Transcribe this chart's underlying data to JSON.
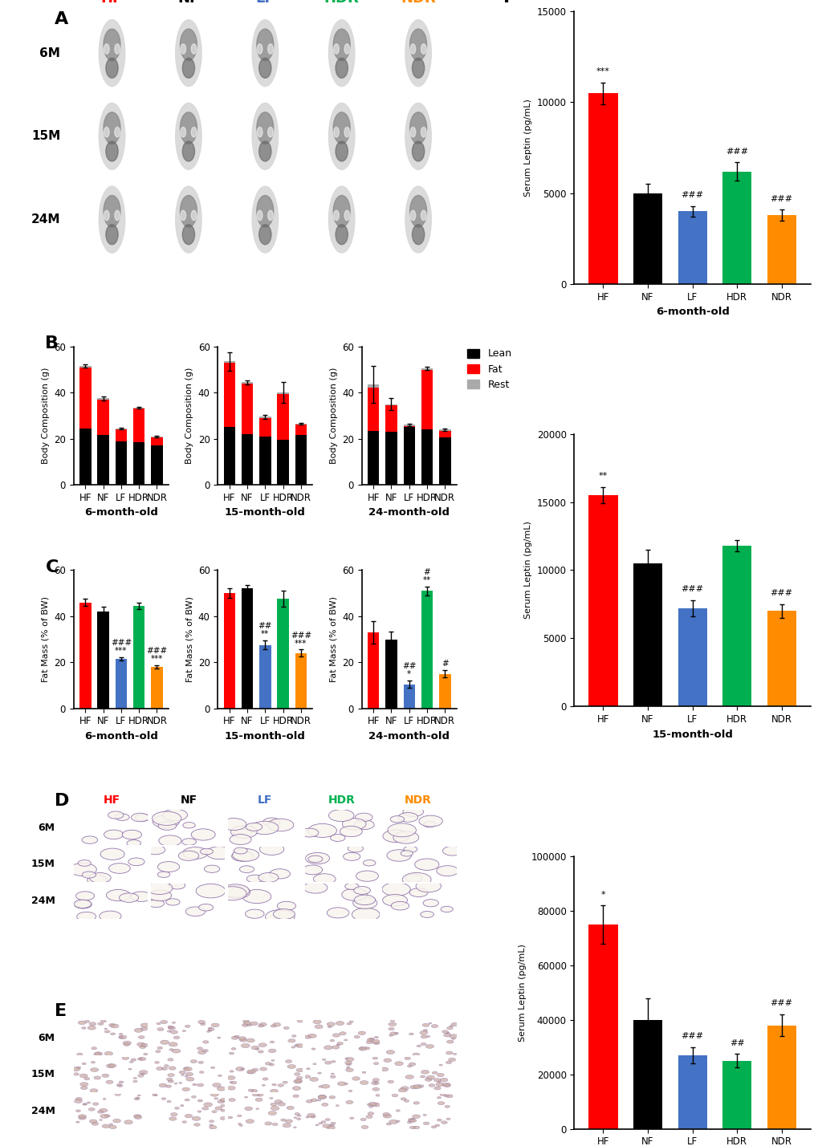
{
  "panel_labels": [
    "A",
    "B",
    "C",
    "D",
    "E",
    "F"
  ],
  "group_labels": [
    "HF",
    "NF",
    "LF",
    "HDR",
    "NDR"
  ],
  "group_colors": [
    "#FF0000",
    "#000000",
    "#4472C4",
    "#00B050",
    "#FF8C00"
  ],
  "col_colors_map": {
    "HF": "#FF0000",
    "NF": "#000000",
    "LF": "#4472C4",
    "HDR": "#00B050",
    "NDR": "#FF8C00"
  },
  "age_labels_mri": [
    "6M",
    "15M",
    "24M"
  ],
  "lean_color": "#000000",
  "fat_color": "#FF0000",
  "rest_color": "#AAAAAA",
  "body_comp_ylabel": "Body Composition (g)",
  "body_comp_6m": {
    "lean": [
      24.5,
      21.5,
      19.0,
      18.5,
      17.0
    ],
    "fat": [
      26.5,
      15.5,
      5.0,
      14.5,
      3.5
    ],
    "rest": [
      0.5,
      0.5,
      0.4,
      0.4,
      0.5
    ],
    "total_err": [
      0.6,
      0.8,
      0.5,
      0.4,
      0.4
    ]
  },
  "body_comp_15m": {
    "lean": [
      25.0,
      22.0,
      21.0,
      19.5,
      21.5
    ],
    "fat": [
      28.0,
      22.0,
      8.0,
      20.0,
      4.5
    ],
    "rest": [
      0.5,
      0.5,
      0.5,
      0.5,
      0.5
    ],
    "total_err": [
      4.0,
      0.8,
      0.8,
      4.5,
      0.5
    ]
  },
  "body_comp_24m": {
    "lean": [
      23.5,
      23.0,
      25.0,
      24.0,
      20.5
    ],
    "fat": [
      18.5,
      11.5,
      0.5,
      26.0,
      3.0
    ],
    "rest": [
      1.5,
      0.5,
      0.5,
      0.5,
      0.5
    ],
    "total_err": [
      8.0,
      2.5,
      0.5,
      0.8,
      0.5
    ]
  },
  "fat_pct_ylabel": "Fat Mass (% of BW)",
  "fat_pct_6m": {
    "means": [
      46.0,
      42.0,
      21.5,
      44.5,
      18.0
    ],
    "sems": [
      1.5,
      2.0,
      0.8,
      1.5,
      0.8
    ],
    "colors": [
      "#FF0000",
      "#000000",
      "#4472C4",
      "#00B050",
      "#FF8C00"
    ],
    "stars": [
      "",
      "",
      "***",
      "",
      "***"
    ],
    "hashes": [
      "",
      "",
      "###",
      "",
      "###"
    ]
  },
  "fat_pct_15m": {
    "means": [
      50.0,
      52.0,
      27.5,
      47.5,
      24.0
    ],
    "sems": [
      2.0,
      1.5,
      2.0,
      3.5,
      1.5
    ],
    "colors": [
      "#FF0000",
      "#000000",
      "#4472C4",
      "#00B050",
      "#FF8C00"
    ],
    "stars": [
      "",
      "",
      "**",
      "",
      "***"
    ],
    "hashes": [
      "",
      "",
      "##",
      "",
      "###"
    ]
  },
  "fat_pct_24m": {
    "means": [
      33.0,
      30.0,
      10.5,
      51.0,
      15.0
    ],
    "sems": [
      5.0,
      3.5,
      1.5,
      2.0,
      1.5
    ],
    "colors": [
      "#FF0000",
      "#000000",
      "#4472C4",
      "#00B050",
      "#FF8C00"
    ],
    "stars": [
      "",
      "",
      "*",
      "**",
      ""
    ],
    "hashes": [
      "",
      "",
      "##",
      "#",
      "#"
    ]
  },
  "leptin_ylabel": "Serum Leptin (pg/mL)",
  "leptin_6m": {
    "means": [
      10500,
      5000,
      4000,
      6200,
      3800
    ],
    "sems": [
      600,
      500,
      300,
      500,
      300
    ],
    "colors": [
      "#FF0000",
      "#000000",
      "#4472C4",
      "#00B050",
      "#FF8C00"
    ],
    "ylim": [
      0,
      15000
    ],
    "yticks": [
      0,
      5000,
      10000,
      15000
    ],
    "stars": [
      "***",
      "",
      "",
      "",
      ""
    ],
    "hashes": [
      "",
      "",
      "###",
      "###",
      "###"
    ]
  },
  "leptin_15m": {
    "means": [
      15500,
      10500,
      7200,
      11800,
      7000
    ],
    "sems": [
      600,
      1000,
      600,
      400,
      500
    ],
    "colors": [
      "#FF0000",
      "#000000",
      "#4472C4",
      "#00B050",
      "#FF8C00"
    ],
    "ylim": [
      0,
      20000
    ],
    "yticks": [
      0,
      5000,
      10000,
      15000,
      20000
    ],
    "stars": [
      "**",
      "",
      "",
      "",
      ""
    ],
    "hashes": [
      "",
      "",
      "###",
      "",
      "###"
    ]
  },
  "leptin_24m": {
    "means": [
      75000,
      40000,
      27000,
      25000,
      38000
    ],
    "sems": [
      7000,
      8000,
      3000,
      2500,
      4000
    ],
    "colors": [
      "#FF0000",
      "#000000",
      "#4472C4",
      "#00B050",
      "#FF8C00"
    ],
    "ylim": [
      0,
      100000
    ],
    "yticks": [
      0,
      20000,
      40000,
      60000,
      80000,
      100000
    ],
    "stars": [
      "*",
      "",
      "",
      "",
      ""
    ],
    "hashes": [
      "",
      "",
      "###",
      "##",
      "###"
    ]
  },
  "background_color": "#FFFFFF"
}
